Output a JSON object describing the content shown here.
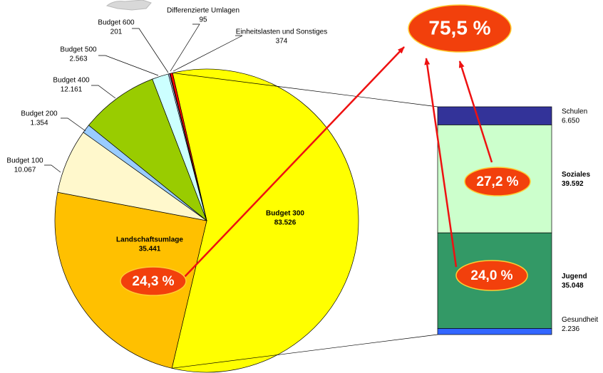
{
  "chart_data": [
    {
      "type": "pie",
      "labels": [
        "Budget 300",
        "Landschaftsumlage",
        "Budget 100",
        "Budget 200",
        "Budget 400",
        "Budget 500",
        "Budget 600",
        "Differenzierte Umlagen",
        "Einheitslasten und Sonstiges"
      ],
      "values": [
        83526,
        35441,
        10067,
        1354,
        12161,
        2563,
        201,
        95,
        374
      ],
      "value_labels": [
        "83.526",
        "35.441",
        "10.067",
        "1.354",
        "12.161",
        "2.563",
        "201",
        "95",
        "374"
      ],
      "colors": [
        "#ffff00",
        "#ffc000",
        "#fff8cc",
        "#99ccff",
        "#99cc00",
        "#ccffff",
        "#ccccff",
        "#ff99cc",
        "#ff0000"
      ]
    },
    {
      "type": "bar",
      "categories": [
        "Schulen",
        "Soziales",
        "Jugend",
        "Gesundheit"
      ],
      "values": [
        6650,
        39592,
        35048,
        2236
      ],
      "value_labels": [
        "6.650",
        "39.592",
        "35.048",
        "2.236"
      ],
      "colors": [
        "#333399",
        "#ccffcc",
        "#339966",
        "#3366ff"
      ]
    }
  ],
  "annotations": [
    "24,3 %",
    "27,2 %",
    "24,0 %",
    "75,5 %"
  ]
}
